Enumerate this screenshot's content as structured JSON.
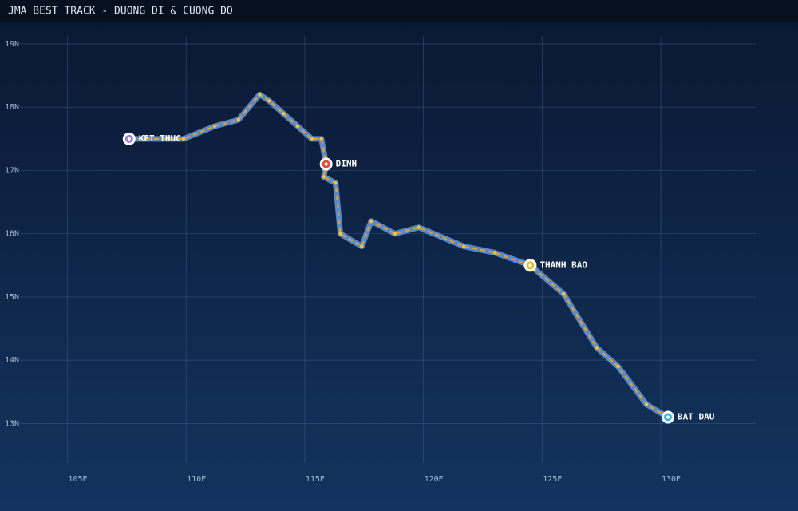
{
  "chart_data": {
    "type": "line",
    "title": "JMA BEST TRACK - DUONG DI & CUONG DO",
    "x": [
      130.3,
      129.4,
      128.2,
      127.3,
      125.9,
      124.5,
      123.0,
      121.7,
      119.8,
      118.8,
      117.8,
      117.4,
      116.5,
      116.3,
      115.8,
      115.9,
      115.7,
      115.3,
      114.7,
      114.1,
      113.5,
      113.1,
      112.2,
      111.2,
      109.9,
      107.6
    ],
    "series": [
      {
        "color": "#5f93d8",
        "values": [
          13.1,
          13.3,
          13.9,
          14.2,
          15.05,
          15.5,
          15.7,
          15.8,
          16.1,
          16.0,
          16.2,
          15.8,
          16.0,
          16.8,
          16.9,
          17.1,
          17.5,
          17.5,
          17.7,
          17.9,
          18.1,
          18.2,
          17.8,
          17.7,
          17.5,
          17.5
        ]
      }
    ],
    "xlim": [
      103,
      134
    ],
    "ylim": [
      12.5,
      19
    ],
    "xticks": [
      {
        "value": 105,
        "label": "105E"
      },
      {
        "value": 110,
        "label": "110E"
      },
      {
        "value": 115,
        "label": "115E"
      },
      {
        "value": 120,
        "label": "120E"
      },
      {
        "value": 125,
        "label": "125E"
      },
      {
        "value": 130,
        "label": "130E"
      }
    ],
    "yticks": [
      {
        "value": 13,
        "label": "13N"
      },
      {
        "value": 14,
        "label": "14N"
      },
      {
        "value": 15,
        "label": "15N"
      },
      {
        "value": 16,
        "label": "16N"
      },
      {
        "value": 17,
        "label": "17N"
      },
      {
        "value": 18,
        "label": "18N"
      },
      {
        "value": 19,
        "label": "19N"
      }
    ],
    "grid": true,
    "annotations": [
      {
        "text": "BAT DAU",
        "x": 130.3,
        "y": 13.1,
        "color": "#3cb8e8"
      },
      {
        "text": "THANH BAO",
        "x": 124.5,
        "y": 15.5,
        "color": "#e8c020"
      },
      {
        "text": "DINH",
        "x": 115.9,
        "y": 17.1,
        "color": "#e0503a"
      },
      {
        "text": "KET THUC",
        "x": 107.6,
        "y": 17.5,
        "color": "#a07ee0"
      }
    ]
  }
}
